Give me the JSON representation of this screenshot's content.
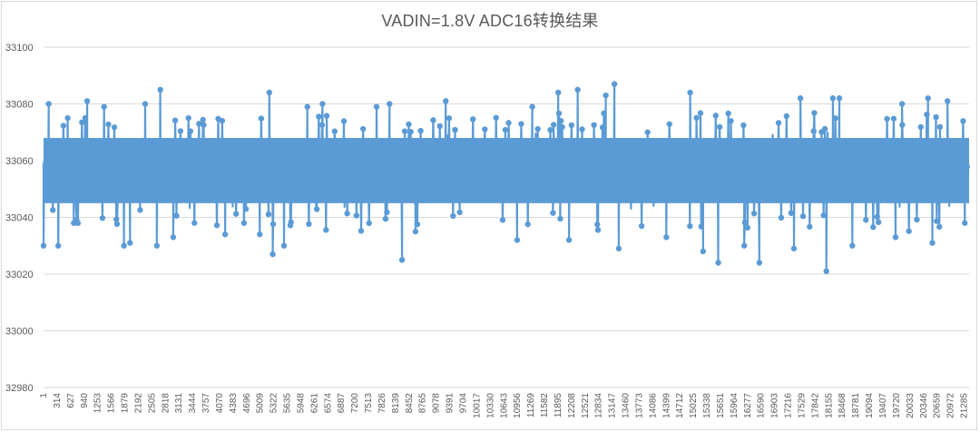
{
  "chart_data": {
    "type": "line",
    "title": "VADIN=1.8V   ADC16转换结果",
    "xlabel": "",
    "ylabel": "",
    "ylim": [
      32980,
      33100
    ],
    "y_ticks": [
      33100,
      33080,
      33060,
      33040,
      33020,
      33000,
      32980
    ],
    "x_range": [
      1,
      21400
    ],
    "x_tick_step": 313,
    "x_ticks": [
      1,
      314,
      627,
      940,
      1253,
      1566,
      1879,
      2192,
      2505,
      2818,
      3131,
      3444,
      3757,
      4070,
      4383,
      4696,
      5009,
      5322,
      5635,
      5948,
      6261,
      6574,
      6887,
      7200,
      7513,
      7826,
      8139,
      8452,
      8765,
      9078,
      9391,
      9704,
      10017,
      10330,
      10643,
      10956,
      11269,
      11582,
      11895,
      12208,
      12521,
      12834,
      13147,
      13460,
      13773,
      14086,
      14399,
      14712,
      15025,
      15338,
      15651,
      15964,
      16277,
      16590,
      16903,
      17216,
      17529,
      17842,
      18155,
      18468,
      18781,
      19094,
      19407,
      19720,
      20033,
      20346,
      20659,
      20972,
      21285
    ],
    "grid": true,
    "legend": null,
    "series": [
      {
        "name": "ADC16",
        "color": "#5b9bd5",
        "marker": "circle",
        "summary": {
          "typical_band": [
            33045,
            33068
          ],
          "mean_approx": 33057,
          "max": 33087,
          "max_at_x_approx": 13200,
          "min": 33021,
          "min_at_x_approx": 18100
        },
        "notable_points": [
          {
            "x": 1,
            "y": 33030
          },
          {
            "x": 120,
            "y": 33080
          },
          {
            "x": 340,
            "y": 33030
          },
          {
            "x": 560,
            "y": 33075
          },
          {
            "x": 700,
            "y": 33038
          },
          {
            "x": 1010,
            "y": 33081
          },
          {
            "x": 1400,
            "y": 33079
          },
          {
            "x": 1860,
            "y": 33030
          },
          {
            "x": 2000,
            "y": 33031
          },
          {
            "x": 2350,
            "y": 33080
          },
          {
            "x": 2620,
            "y": 33030
          },
          {
            "x": 2700,
            "y": 33085
          },
          {
            "x": 3000,
            "y": 33033
          },
          {
            "x": 4200,
            "y": 33034
          },
          {
            "x": 5000,
            "y": 33034
          },
          {
            "x": 5220,
            "y": 33084
          },
          {
            "x": 5300,
            "y": 33027
          },
          {
            "x": 5560,
            "y": 33030
          },
          {
            "x": 6100,
            "y": 33079
          },
          {
            "x": 6450,
            "y": 33080
          },
          {
            "x": 7700,
            "y": 33079
          },
          {
            "x": 8000,
            "y": 33080
          },
          {
            "x": 8290,
            "y": 33025
          },
          {
            "x": 8600,
            "y": 33035
          },
          {
            "x": 9300,
            "y": 33081
          },
          {
            "x": 10950,
            "y": 33032
          },
          {
            "x": 11300,
            "y": 33079
          },
          {
            "x": 11900,
            "y": 33084
          },
          {
            "x": 12150,
            "y": 33032
          },
          {
            "x": 12350,
            "y": 33085
          },
          {
            "x": 13000,
            "y": 33083
          },
          {
            "x": 13200,
            "y": 33087
          },
          {
            "x": 13300,
            "y": 33029
          },
          {
            "x": 14400,
            "y": 33033
          },
          {
            "x": 14950,
            "y": 33084
          },
          {
            "x": 15250,
            "y": 33028
          },
          {
            "x": 15600,
            "y": 33024
          },
          {
            "x": 16200,
            "y": 33030
          },
          {
            "x": 16550,
            "y": 33024
          },
          {
            "x": 17350,
            "y": 33029
          },
          {
            "x": 17500,
            "y": 33082
          },
          {
            "x": 18100,
            "y": 33021
          },
          {
            "x": 18250,
            "y": 33082
          },
          {
            "x": 18400,
            "y": 33082
          },
          {
            "x": 18700,
            "y": 33030
          },
          {
            "x": 19700,
            "y": 33033
          },
          {
            "x": 19850,
            "y": 33080
          },
          {
            "x": 20450,
            "y": 33082
          },
          {
            "x": 20550,
            "y": 33031
          },
          {
            "x": 20900,
            "y": 33081
          },
          {
            "x": 21300,
            "y": 33038
          }
        ]
      }
    ]
  },
  "chart": {
    "title": "VADIN=1.8V   ADC16转换结果",
    "colors": {
      "series": "#5b9bd5",
      "grid": "#d9d9d9",
      "text": "#595959",
      "border": "#d9d9d9"
    }
  }
}
